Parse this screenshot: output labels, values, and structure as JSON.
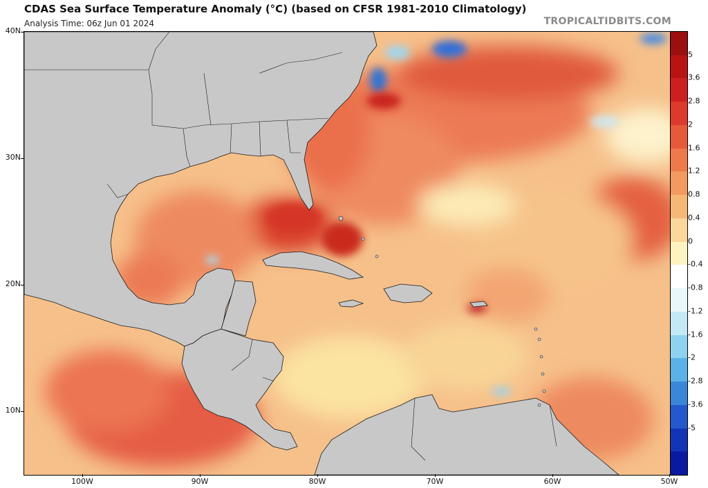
{
  "header": {
    "title": "CDAS Sea Surface Temperature Anomaly (°C) (based on CFSR 1981-2010 Climatology)",
    "analysis_time": "Analysis Time: 06z Jun 01 2024",
    "credit": "TROPICALTIDBITS.COM"
  },
  "map": {
    "lat_labels": [
      "40N",
      "30N",
      "20N",
      "10N"
    ],
    "lon_labels": [
      "100W",
      "90W",
      "80W",
      "70W",
      "60W",
      "50W"
    ],
    "land_color": "#c8c8c8",
    "border_color": "#1a1a1a"
  },
  "colorbar": {
    "labels": [
      "5",
      "3.6",
      "2.8",
      "2",
      "1.6",
      "1.2",
      "0.8",
      "0.4",
      "0",
      "-0.4",
      "-0.8",
      "-1.2",
      "-1.6",
      "-2",
      "-2.8",
      "-3.6",
      "-5"
    ],
    "colors": [
      "#9b0f0f",
      "#b81414",
      "#cc2020",
      "#dc3a2c",
      "#e65a3c",
      "#ee7a4c",
      "#f39a60",
      "#f6b877",
      "#fad79a",
      "#fdf3c0",
      "#ffffff",
      "#e9f6fb",
      "#c3e8f6",
      "#8fd2ef",
      "#5ab2e6",
      "#3a86d8",
      "#2458cc",
      "#1434b8",
      "#0a1aa0"
    ]
  }
}
